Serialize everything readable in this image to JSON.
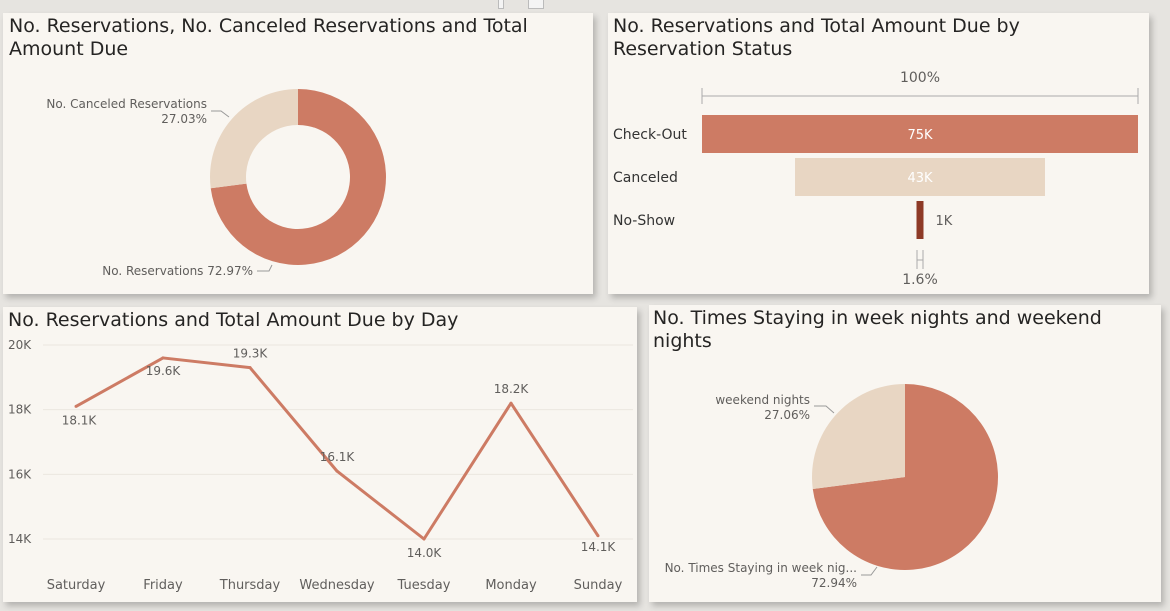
{
  "visuals": {
    "donut": {
      "title": "No. Reservations, No. Canceled Reservations and Total Amount Due"
    },
    "funnel": {
      "title": "No. Reservations and Total Amount Due by Reservation Status"
    },
    "line": {
      "title": "No. Reservations and Total Amount Due by Day"
    },
    "pie": {
      "title": "No. Times Staying in week nights and weekend nights"
    }
  },
  "colors": {
    "primary": "#cd7b64",
    "secondary": "#e8d6c3",
    "dark": "#8e3a26",
    "background": "#f9f6f1"
  },
  "chart_data": [
    {
      "type": "pie",
      "variant": "donut",
      "title": "No. Reservations, No. Canceled Reservations and Total Amount Due",
      "slices": [
        {
          "label": "No. Reservations",
          "value": 72.97,
          "display": "No. Reservations 72.97%"
        },
        {
          "label": "No. Canceled Reservations",
          "value": 27.03,
          "display": "27.03%"
        }
      ]
    },
    {
      "type": "bar",
      "variant": "funnel",
      "title": "No. Reservations and Total Amount Due by Reservation Status",
      "top_label": "100%",
      "bottom_label": "1.6%",
      "categories": [
        "Check-Out",
        "Canceled",
        "No-Show"
      ],
      "values": [
        75000,
        43000,
        1200
      ],
      "value_labels": [
        "75K",
        "43K",
        "1K"
      ]
    },
    {
      "type": "line",
      "title": "No. Reservations and Total Amount Due by Day",
      "categories": [
        "Saturday",
        "Friday",
        "Thursday",
        "Wednesday",
        "Tuesday",
        "Monday",
        "Sunday"
      ],
      "values": [
        18.1,
        19.6,
        19.3,
        16.1,
        14.0,
        18.2,
        14.1
      ],
      "value_labels": [
        "18.1K",
        "19.6K",
        "19.3K",
        "16.1K",
        "14.0K",
        "18.2K",
        "14.1K"
      ],
      "yticks": [
        "14K",
        "16K",
        "18K",
        "20K"
      ],
      "ytick_values": [
        14,
        16,
        18,
        20
      ],
      "ylim": [
        13.7,
        20.1
      ],
      "grid": true
    },
    {
      "type": "pie",
      "title": "No. Times Staying in week nights and weekend nights",
      "slices": [
        {
          "label": "No. Times Staying in week nig...",
          "value": 72.94,
          "display_pct": "72.94%"
        },
        {
          "label": "weekend nights",
          "value": 27.06,
          "display_pct": "27.06%"
        }
      ]
    }
  ]
}
